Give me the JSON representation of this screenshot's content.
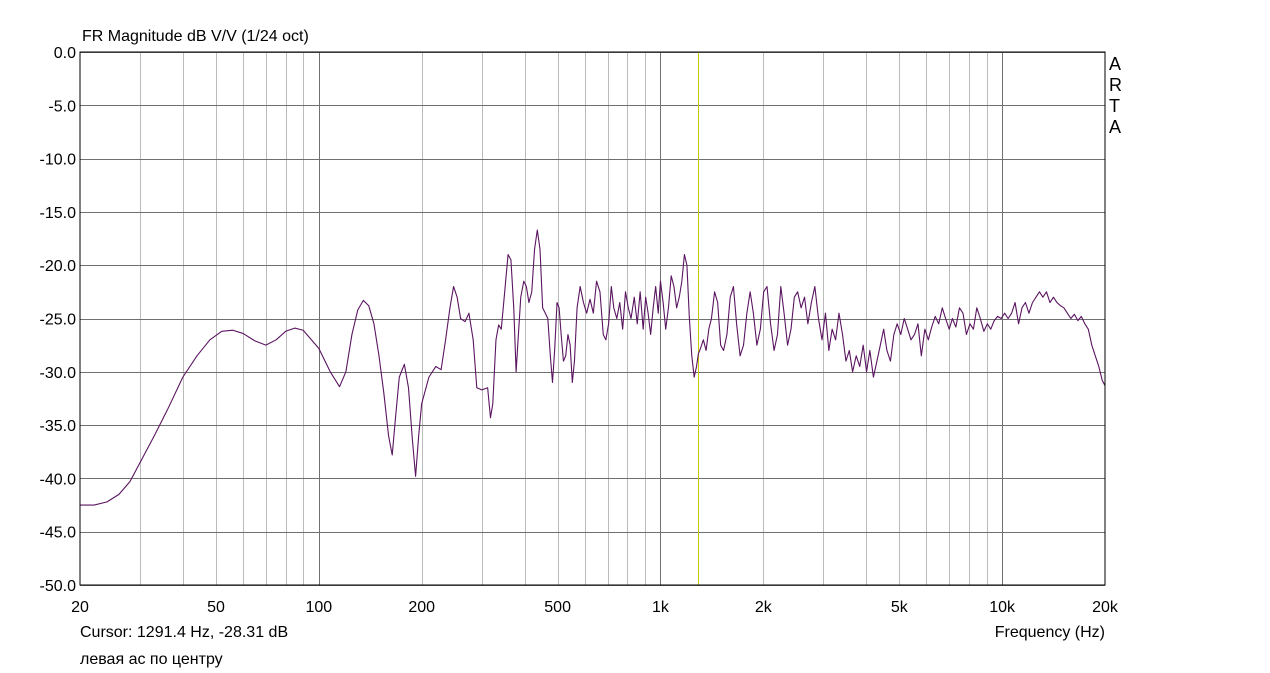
{
  "chart_data": {
    "type": "line",
    "title": "FR Magnitude dB V/V (1/24 oct)",
    "xlabel": "Frequency (Hz)",
    "ylabel": "",
    "xscale": "log",
    "xlim": [
      20,
      20000
    ],
    "ylim": [
      -50,
      0
    ],
    "grid": true,
    "x_ticks": [
      {
        "value": 20,
        "label": "20"
      },
      {
        "value": 50,
        "label": "50"
      },
      {
        "value": 100,
        "label": "100"
      },
      {
        "value": 200,
        "label": "200"
      },
      {
        "value": 500,
        "label": "500"
      },
      {
        "value": 1000,
        "label": "1k"
      },
      {
        "value": 2000,
        "label": "2k"
      },
      {
        "value": 5000,
        "label": "5k"
      },
      {
        "value": 10000,
        "label": "10k"
      },
      {
        "value": 20000,
        "label": "20k"
      }
    ],
    "y_ticks": [
      {
        "value": 0,
        "label": "0.0"
      },
      {
        "value": -5,
        "label": "-5.0"
      },
      {
        "value": -10,
        "label": "-10.0"
      },
      {
        "value": -15,
        "label": "-15.0"
      },
      {
        "value": -20,
        "label": "-20.0"
      },
      {
        "value": -25,
        "label": "-25.0"
      },
      {
        "value": -30,
        "label": "-30.0"
      },
      {
        "value": -35,
        "label": "-35.0"
      },
      {
        "value": -40,
        "label": "-40.0"
      },
      {
        "value": -45,
        "label": "-45.0"
      },
      {
        "value": -50,
        "label": "-50.0"
      }
    ],
    "cursor": {
      "frequency": 1291.4,
      "level": -28.31,
      "label": "Cursor: 1291.4 Hz, -28.31 dB"
    },
    "series": [
      {
        "points": [
          [
            20,
            -42.5
          ],
          [
            22,
            -42.5
          ],
          [
            24,
            -42.2
          ],
          [
            26,
            -41.5
          ],
          [
            28,
            -40.3
          ],
          [
            30,
            -38.5
          ],
          [
            33,
            -36.0
          ],
          [
            36,
            -33.6
          ],
          [
            40,
            -30.5
          ],
          [
            44,
            -28.5
          ],
          [
            48,
            -27.0
          ],
          [
            52,
            -26.2
          ],
          [
            56,
            -26.1
          ],
          [
            60,
            -26.4
          ],
          [
            65,
            -27.1
          ],
          [
            70,
            -27.5
          ],
          [
            75,
            -27.0
          ],
          [
            80,
            -26.2
          ],
          [
            85,
            -25.9
          ],
          [
            90,
            -26.1
          ],
          [
            100,
            -27.8
          ],
          [
            108,
            -30.0
          ],
          [
            115,
            -31.4
          ],
          [
            120,
            -30.0
          ],
          [
            125,
            -26.5
          ],
          [
            130,
            -24.2
          ],
          [
            135,
            -23.3
          ],
          [
            140,
            -23.8
          ],
          [
            145,
            -25.5
          ],
          [
            150,
            -28.5
          ],
          [
            155,
            -32.0
          ],
          [
            160,
            -36.0
          ],
          [
            164,
            -37.8
          ],
          [
            168,
            -34.0
          ],
          [
            172,
            -30.5
          ],
          [
            178,
            -29.3
          ],
          [
            183,
            -31.5
          ],
          [
            188,
            -36.5
          ],
          [
            192,
            -39.8
          ],
          [
            196,
            -36.0
          ],
          [
            200,
            -33.0
          ],
          [
            210,
            -30.5
          ],
          [
            220,
            -29.5
          ],
          [
            228,
            -29.8
          ],
          [
            235,
            -27.0
          ],
          [
            242,
            -24.0
          ],
          [
            248,
            -22.0
          ],
          [
            254,
            -23.0
          ],
          [
            260,
            -25.0
          ],
          [
            268,
            -25.3
          ],
          [
            275,
            -24.5
          ],
          [
            283,
            -27.0
          ],
          [
            290,
            -31.5
          ],
          [
            300,
            -31.7
          ],
          [
            312,
            -31.5
          ],
          [
            318,
            -34.3
          ],
          [
            323,
            -33.0
          ],
          [
            330,
            -27.0
          ],
          [
            336,
            -25.6
          ],
          [
            342,
            -26.0
          ],
          [
            350,
            -22.5
          ],
          [
            358,
            -19.0
          ],
          [
            365,
            -19.5
          ],
          [
            372,
            -24.0
          ],
          [
            378,
            -30.0
          ],
          [
            383,
            -27.0
          ],
          [
            390,
            -23.0
          ],
          [
            398,
            -21.5
          ],
          [
            405,
            -22.0
          ],
          [
            412,
            -23.5
          ],
          [
            420,
            -22.5
          ],
          [
            428,
            -18.5
          ],
          [
            436,
            -16.7
          ],
          [
            444,
            -18.5
          ],
          [
            452,
            -24.0
          ],
          [
            460,
            -24.5
          ],
          [
            468,
            -25.0
          ],
          [
            476,
            -28.5
          ],
          [
            483,
            -31.0
          ],
          [
            490,
            -28.0
          ],
          [
            498,
            -23.5
          ],
          [
            505,
            -24.0
          ],
          [
            512,
            -26.5
          ],
          [
            520,
            -29.0
          ],
          [
            528,
            -28.5
          ],
          [
            536,
            -26.5
          ],
          [
            544,
            -27.5
          ],
          [
            552,
            -31.0
          ],
          [
            560,
            -29.0
          ],
          [
            570,
            -24.0
          ],
          [
            582,
            -22.0
          ],
          [
            595,
            -23.5
          ],
          [
            608,
            -24.5
          ],
          [
            622,
            -23.2
          ],
          [
            636,
            -24.5
          ],
          [
            650,
            -21.5
          ],
          [
            665,
            -22.5
          ],
          [
            680,
            -26.5
          ],
          [
            692,
            -27.0
          ],
          [
            705,
            -25.5
          ],
          [
            718,
            -22.0
          ],
          [
            730,
            -24.0
          ],
          [
            745,
            -25.0
          ],
          [
            760,
            -23.5
          ],
          [
            775,
            -26.0
          ],
          [
            790,
            -22.5
          ],
          [
            805,
            -24.0
          ],
          [
            820,
            -25.0
          ],
          [
            838,
            -23.0
          ],
          [
            855,
            -25.5
          ],
          [
            872,
            -22.5
          ],
          [
            890,
            -26.0
          ],
          [
            905,
            -23.0
          ],
          [
            920,
            -24.5
          ],
          [
            936,
            -26.5
          ],
          [
            952,
            -24.0
          ],
          [
            968,
            -22.0
          ],
          [
            985,
            -24.5
          ],
          [
            1000,
            -21.5
          ],
          [
            1018,
            -23.5
          ],
          [
            1036,
            -26.0
          ],
          [
            1055,
            -24.0
          ],
          [
            1075,
            -21.0
          ],
          [
            1095,
            -22.0
          ],
          [
            1115,
            -24.0
          ],
          [
            1135,
            -23.0
          ],
          [
            1155,
            -21.5
          ],
          [
            1175,
            -19.0
          ],
          [
            1195,
            -20.0
          ],
          [
            1215,
            -25.0
          ],
          [
            1235,
            -28.5
          ],
          [
            1255,
            -30.5
          ],
          [
            1275,
            -29.5
          ],
          [
            1291,
            -28.3
          ],
          [
            1310,
            -27.8
          ],
          [
            1335,
            -27.0
          ],
          [
            1360,
            -28.0
          ],
          [
            1385,
            -26.0
          ],
          [
            1410,
            -25.0
          ],
          [
            1440,
            -22.5
          ],
          [
            1470,
            -23.5
          ],
          [
            1500,
            -27.5
          ],
          [
            1530,
            -28.0
          ],
          [
            1565,
            -26.5
          ],
          [
            1600,
            -23.0
          ],
          [
            1635,
            -22.0
          ],
          [
            1670,
            -25.5
          ],
          [
            1710,
            -28.5
          ],
          [
            1750,
            -27.5
          ],
          [
            1790,
            -24.5
          ],
          [
            1830,
            -22.5
          ],
          [
            1870,
            -24.5
          ],
          [
            1915,
            -27.5
          ],
          [
            1960,
            -26.0
          ],
          [
            2005,
            -22.5
          ],
          [
            2050,
            -22.0
          ],
          [
            2100,
            -25.5
          ],
          [
            2150,
            -28.0
          ],
          [
            2200,
            -26.5
          ],
          [
            2250,
            -22.0
          ],
          [
            2300,
            -24.5
          ],
          [
            2355,
            -27.5
          ],
          [
            2410,
            -26.0
          ],
          [
            2465,
            -23.0
          ],
          [
            2520,
            -22.5
          ],
          [
            2580,
            -24.0
          ],
          [
            2640,
            -23.0
          ],
          [
            2700,
            -25.5
          ],
          [
            2765,
            -23.5
          ],
          [
            2830,
            -22.0
          ],
          [
            2900,
            -25.0
          ],
          [
            2970,
            -27.0
          ],
          [
            3040,
            -24.5
          ],
          [
            3110,
            -28.0
          ],
          [
            3180,
            -26.0
          ],
          [
            3255,
            -27.0
          ],
          [
            3330,
            -24.5
          ],
          [
            3410,
            -26.5
          ],
          [
            3490,
            -29.0
          ],
          [
            3570,
            -28.0
          ],
          [
            3650,
            -30.0
          ],
          [
            3740,
            -28.5
          ],
          [
            3830,
            -29.5
          ],
          [
            3920,
            -27.5
          ],
          [
            4010,
            -30.0
          ],
          [
            4100,
            -28.0
          ],
          [
            4200,
            -30.5
          ],
          [
            4300,
            -29.0
          ],
          [
            4400,
            -27.5
          ],
          [
            4500,
            -26.0
          ],
          [
            4600,
            -28.0
          ],
          [
            4710,
            -29.0
          ],
          [
            4820,
            -26.5
          ],
          [
            4930,
            -25.5
          ],
          [
            5050,
            -26.5
          ],
          [
            5170,
            -25.0
          ],
          [
            5290,
            -26.0
          ],
          [
            5410,
            -27.0
          ],
          [
            5540,
            -26.5
          ],
          [
            5670,
            -25.5
          ],
          [
            5800,
            -28.5
          ],
          [
            5940,
            -26.0
          ],
          [
            6080,
            -27.0
          ],
          [
            6220,
            -25.8
          ],
          [
            6370,
            -24.8
          ],
          [
            6520,
            -25.5
          ],
          [
            6680,
            -24.0
          ],
          [
            6830,
            -25.0
          ],
          [
            7000,
            -26.0
          ],
          [
            7150,
            -25.0
          ],
          [
            7320,
            -25.8
          ],
          [
            7500,
            -24.0
          ],
          [
            7680,
            -24.5
          ],
          [
            7860,
            -26.5
          ],
          [
            8050,
            -25.5
          ],
          [
            8240,
            -26.0
          ],
          [
            8430,
            -24.0
          ],
          [
            8630,
            -25.0
          ],
          [
            8840,
            -26.2
          ],
          [
            9050,
            -25.5
          ],
          [
            9260,
            -26.0
          ],
          [
            9480,
            -25.2
          ],
          [
            9700,
            -24.8
          ],
          [
            9930,
            -25.0
          ],
          [
            10170,
            -24.5
          ],
          [
            10410,
            -25.0
          ],
          [
            10660,
            -24.5
          ],
          [
            10910,
            -23.5
          ],
          [
            11170,
            -25.5
          ],
          [
            11430,
            -24.0
          ],
          [
            11700,
            -23.5
          ],
          [
            11980,
            -24.5
          ],
          [
            12270,
            -23.5
          ],
          [
            12560,
            -23.0
          ],
          [
            12860,
            -22.5
          ],
          [
            13160,
            -23.0
          ],
          [
            13480,
            -22.5
          ],
          [
            13800,
            -23.5
          ],
          [
            14130,
            -23.0
          ],
          [
            14470,
            -23.5
          ],
          [
            14810,
            -23.8
          ],
          [
            15160,
            -24.0
          ],
          [
            15520,
            -24.5
          ],
          [
            15890,
            -25.0
          ],
          [
            16270,
            -24.6
          ],
          [
            16660,
            -25.2
          ],
          [
            17050,
            -24.8
          ],
          [
            17460,
            -25.5
          ],
          [
            17870,
            -26.0
          ],
          [
            18300,
            -27.5
          ],
          [
            18730,
            -28.5
          ],
          [
            19180,
            -29.5
          ],
          [
            19630,
            -30.8
          ],
          [
            20000,
            -31.3
          ]
        ]
      }
    ]
  },
  "brand": [
    "A",
    "R",
    "T",
    "A"
  ],
  "caption": "левая ас по центру",
  "colors": {
    "curve": "#5a1560",
    "cursor": "#c8c800",
    "grid": "#bbbbbb",
    "grid_major": "#6f6f6f",
    "frame": "#000000",
    "background": "#ffffff"
  }
}
